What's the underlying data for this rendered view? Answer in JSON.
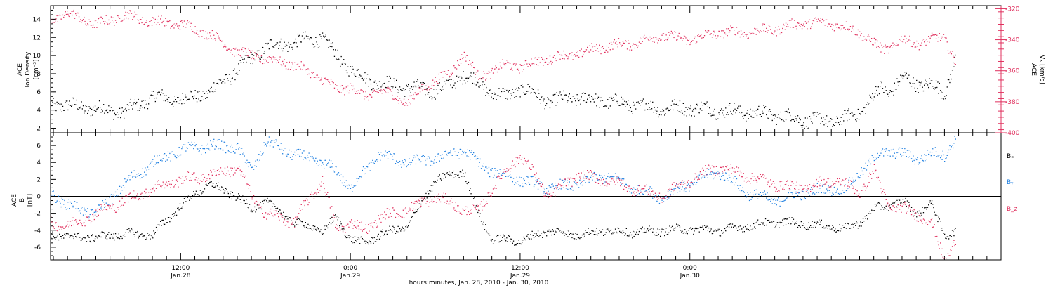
{
  "chart_data": [
    {
      "type": "scatter",
      "panel": "top",
      "ylabel_left": [
        "ACE",
        "Ion Density",
        "[cm⁻³]"
      ],
      "ylabel_right": [
        "ACE",
        "Vₓ [km/s]"
      ],
      "ylim_left": [
        1.5,
        15.5
      ],
      "ylim_right": [
        -400,
        -318
      ],
      "yticks_left": [
        "2",
        "4",
        "6",
        "8",
        "10",
        "12",
        "14"
      ],
      "yticks_right": [
        "-320",
        "-340",
        "-360",
        "-380",
        "-400"
      ],
      "grid": false,
      "series": [
        {
          "name": "Ion Density",
          "color": "#000000",
          "axis": "left",
          "x": [
            -9.2,
            -8,
            -6,
            -4,
            -2,
            0,
            2,
            4,
            6,
            8,
            10,
            11,
            12,
            13,
            14,
            16,
            18,
            19,
            20,
            21,
            22,
            23,
            24,
            26,
            28,
            30,
            32,
            34,
            36,
            38,
            40,
            42,
            44,
            46,
            47,
            48,
            49.5,
            50,
            51,
            52,
            53,
            54,
            54.8
          ],
          "y": [
            4.8,
            4.5,
            4.2,
            3.8,
            5.5,
            5.2,
            6.0,
            8.5,
            11.0,
            11.5,
            12.0,
            10.0,
            8.5,
            7.5,
            7.0,
            6.5,
            6.2,
            6.8,
            8.0,
            7.0,
            6.0,
            5.5,
            6.5,
            5.0,
            5.4,
            5.0,
            4.6,
            4.2,
            4.3,
            4.0,
            3.8,
            3.5,
            3.0,
            2.8,
            3.1,
            3.8,
            6.5,
            6.0,
            7.5,
            7.0,
            6.8,
            6.0,
            10.0
          ]
        },
        {
          "name": "Vx",
          "color": "#e0305e",
          "axis": "right",
          "x": [
            -9.2,
            -8,
            -6,
            -4,
            -2,
            0,
            2,
            4,
            6,
            8,
            10,
            11,
            12,
            13,
            14,
            16,
            18,
            19,
            20,
            21,
            22,
            23,
            24,
            26,
            28,
            30,
            32,
            34,
            36,
            38,
            40,
            42,
            44,
            46,
            47,
            48,
            49.5,
            50,
            51,
            52,
            53,
            54,
            54.8
          ],
          "y": [
            -327,
            -323,
            -330,
            -324,
            -328,
            -330,
            -336,
            -348,
            -352,
            -356,
            -365,
            -372,
            -370,
            -377,
            -372,
            -380,
            -365,
            -362,
            -348,
            -364,
            -360,
            -356,
            -357,
            -352,
            -349,
            -344,
            -342,
            -337,
            -340,
            -335,
            -335,
            -333,
            -329,
            -329,
            -332,
            -335,
            -346,
            -345,
            -340,
            -342,
            -340,
            -338,
            -355
          ]
        }
      ]
    },
    {
      "type": "scatter",
      "panel": "bottom",
      "ylabel_left": [
        "ACE",
        "B",
        "[nT]"
      ],
      "ylim": [
        -7.5,
        7.5
      ],
      "yticks": [
        "6",
        "4",
        "2",
        "0",
        "-2",
        "-4",
        "-6"
      ],
      "zero_line": true,
      "grid": false,
      "legend_placement": "right",
      "series": [
        {
          "name": "Bx",
          "color": "#000000",
          "x": [
            -9.2,
            -8,
            -6,
            -4,
            -2,
            0,
            2,
            4,
            5,
            6,
            8,
            10,
            11,
            12,
            13,
            14,
            16,
            18,
            20,
            21,
            22,
            24,
            26,
            28,
            30,
            32,
            34,
            36,
            38,
            40,
            42,
            44,
            46,
            47,
            48,
            49,
            50,
            51,
            52,
            53,
            54,
            54.8
          ],
          "y": [
            -4.5,
            -4.7,
            -4.8,
            -4.4,
            -4.5,
            -1.0,
            1.5,
            0.0,
            -1.5,
            -0.5,
            -3.0,
            -4.0,
            -2.5,
            -5.0,
            -5.5,
            -4.5,
            -3.5,
            2.0,
            3.0,
            -2.0,
            -5.0,
            -5.2,
            -4.0,
            -4.5,
            -4.0,
            -4.2,
            -4.0,
            -3.8,
            -4.0,
            -3.5,
            -3.0,
            -3.2,
            -3.5,
            -3.8,
            -3.0,
            -1.5,
            -1.0,
            -0.5,
            -2.0,
            -0.8,
            -4.5,
            -4.0
          ]
        },
        {
          "name": "By",
          "color": "#1f7fe0",
          "x": [
            -9.2,
            -8,
            -6,
            -4,
            -2,
            0,
            2,
            4,
            5,
            6,
            8,
            10,
            11,
            12,
            13,
            14,
            16,
            18,
            20,
            21,
            22,
            24,
            26,
            28,
            30,
            32,
            34,
            36,
            38,
            40,
            42,
            44,
            46,
            47,
            48,
            49,
            50,
            51,
            52,
            53,
            54,
            54.8
          ],
          "y": [
            0.5,
            -1.0,
            -2.0,
            1.5,
            4.0,
            5.5,
            6.0,
            5.8,
            3.0,
            6.5,
            5.0,
            4.0,
            3.0,
            1.0,
            3.0,
            5.0,
            4.0,
            4.5,
            5.5,
            4.0,
            3.0,
            2.0,
            1.0,
            1.5,
            2.5,
            1.0,
            0.0,
            1.5,
            3.0,
            0.5,
            -0.5,
            0.5,
            1.0,
            0.8,
            3.0,
            4.5,
            5.5,
            5.0,
            4.5,
            5.0,
            5.0,
            7.0
          ]
        },
        {
          "name": "Bz",
          "color": "#e0305e",
          "x": [
            -9.2,
            -8,
            -6,
            -4,
            -2,
            0,
            2,
            4,
            5,
            6,
            8,
            10,
            11,
            12,
            13,
            14,
            16,
            18,
            20,
            21,
            22,
            24,
            26,
            28,
            30,
            32,
            34,
            36,
            38,
            40,
            42,
            44,
            46,
            47,
            48,
            49,
            50,
            51,
            52,
            53,
            54,
            54.8
          ],
          "y": [
            -3.0,
            -3.5,
            -2.0,
            -0.5,
            1.0,
            2.0,
            2.5,
            3.5,
            0.0,
            -2.0,
            -3.0,
            2.0,
            -4.0,
            -3.0,
            -4.0,
            -2.5,
            -1.5,
            0.0,
            -1.5,
            -1.8,
            1.0,
            5.0,
            0.0,
            2.5,
            2.0,
            1.0,
            0.0,
            2.0,
            3.5,
            2.5,
            1.5,
            1.0,
            2.0,
            1.5,
            0.5,
            3.0,
            -1.0,
            -1.5,
            -2.0,
            -3.0,
            -7.5,
            -5.0
          ]
        }
      ]
    }
  ],
  "x_axis": {
    "range_hours": [
      -9.2,
      58
    ],
    "ticks": [
      {
        "h": 0,
        "line1": "12:00",
        "line2": "Jan.28"
      },
      {
        "h": 12,
        "line1": "0:00",
        "line2": "Jan.29"
      },
      {
        "h": 24,
        "line1": "12:00",
        "line2": "Jan.29"
      },
      {
        "h": 36,
        "line1": "0:00",
        "line2": "Jan.30"
      }
    ],
    "label": "hours:minutes, Jan. 28, 2010 - Jan. 30, 2010"
  },
  "legend": {
    "bx": "Bₓ",
    "by": "Bᵧ",
    "bz": "B_z"
  }
}
